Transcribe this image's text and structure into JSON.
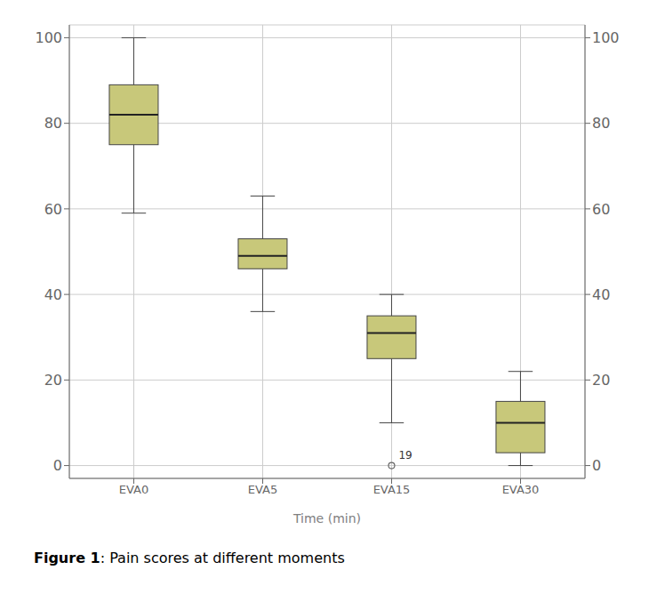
{
  "chart_data": {
    "type": "box",
    "categories": [
      "EVA0",
      "EVA5",
      "EVA15",
      "EVA30"
    ],
    "xlabel": "Time (min)",
    "ylim": [
      -3,
      103
    ],
    "yticks": [
      0,
      20,
      40,
      60,
      80,
      100
    ],
    "y2lim": [
      -3,
      103
    ],
    "y2ticks": [
      0,
      20,
      40,
      60,
      80,
      100
    ],
    "grid": true,
    "color": "#c8c87a",
    "boxes": [
      {
        "q1": 75,
        "median": 82,
        "q3": 89,
        "whislo": 59,
        "whishi": 100,
        "fliers": []
      },
      {
        "q1": 46,
        "median": 49,
        "q3": 53,
        "whislo": 36,
        "whishi": 63,
        "fliers": []
      },
      {
        "q1": 25,
        "median": 31,
        "q3": 35,
        "whislo": 10,
        "whishi": 40,
        "fliers": [
          0
        ]
      },
      {
        "q1": 3,
        "median": 10,
        "q3": 15,
        "whislo": 0,
        "whishi": 22,
        "fliers": []
      }
    ],
    "annotations": [
      {
        "text": "19",
        "x": "EVA15",
        "y": 0
      }
    ],
    "caption": {
      "bold": "Figure 1",
      "text": ": Pain scores at different moments"
    }
  }
}
